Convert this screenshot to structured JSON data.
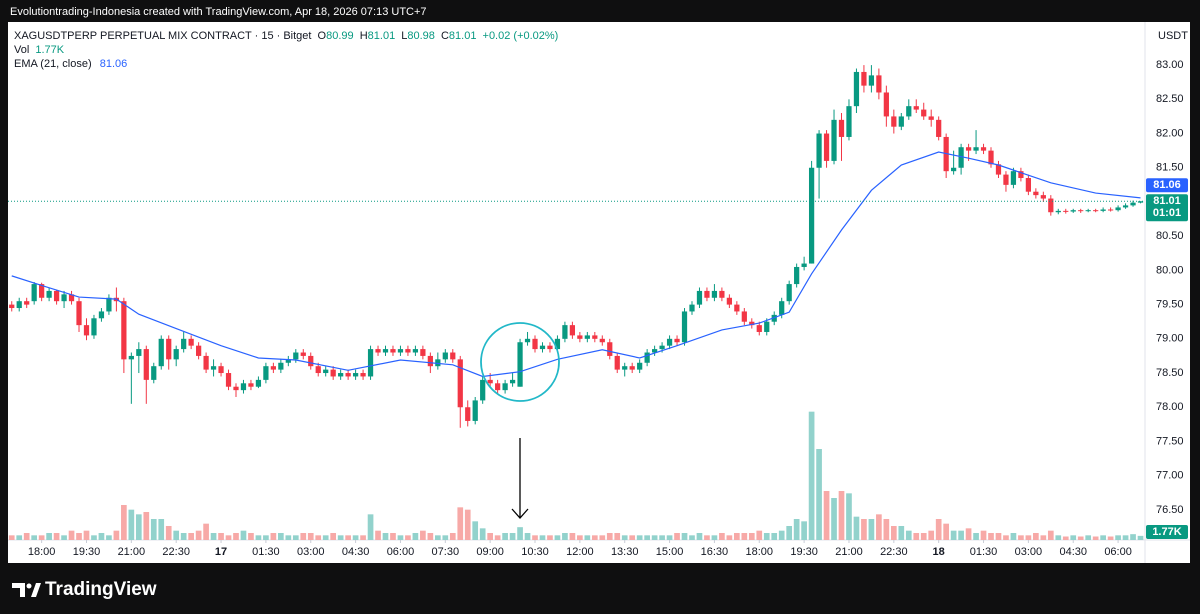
{
  "attribution": "Evolutiontrading-Indonesia created with TradingView.com, Apr 18, 2026 07:13 UTC+7",
  "brand": "TradingView",
  "chart_data": {
    "type": "candlestick",
    "symbol": "XAGUSDTPERP PERPETUAL MIX CONTRACT · 15 · Bitget",
    "ohlc_keys": [
      "O",
      "H",
      "L",
      "C"
    ],
    "change": "+0.02 (+0.02%)",
    "vol_name": "Vol",
    "ema_name": "EMA (21, close)",
    "unit": "USDT",
    "up_color": "#089981",
    "down_color": "#f23645",
    "ema_color": "#2962ff",
    "vol_up_color": "#92d2cc",
    "vol_down_color": "#f7a9a7",
    "grid": false,
    "ylim": [
      76.06,
      83.63
    ],
    "yticks": [
      {
        "value": 76.5,
        "label": "76.50"
      },
      {
        "value": 77,
        "label": "77.00"
      },
      {
        "value": 77.5,
        "label": "77.50"
      },
      {
        "value": 78,
        "label": "78.00"
      },
      {
        "value": 78.5,
        "label": "78.50"
      },
      {
        "value": 79,
        "label": "79.00"
      },
      {
        "value": 79.5,
        "label": "79.50"
      },
      {
        "value": 80,
        "label": "80.00"
      },
      {
        "value": 80.5,
        "label": "80.50"
      },
      {
        "value": 81,
        "label": "81.00"
      },
      {
        "value": 81.5,
        "label": "81.50"
      },
      {
        "value": 82,
        "label": "82.00"
      },
      {
        "value": 82.5,
        "label": "82.50"
      },
      {
        "value": 83,
        "label": "83.00"
      }
    ],
    "xlim": [
      -0.5,
      151.6
    ],
    "xticks": [
      {
        "value": 4,
        "label": "18:00"
      },
      {
        "value": 10,
        "label": "19:30"
      },
      {
        "value": 16,
        "label": "21:00"
      },
      {
        "value": 22,
        "label": "22:30"
      },
      {
        "value": 28,
        "label": "17"
      },
      {
        "value": 34,
        "label": "01:30"
      },
      {
        "value": 40,
        "label": "03:00"
      },
      {
        "value": 46,
        "label": "04:30"
      },
      {
        "value": 52,
        "label": "06:00"
      },
      {
        "value": 58,
        "label": "07:30"
      },
      {
        "value": 64,
        "label": "09:00"
      },
      {
        "value": 70,
        "label": "10:30"
      },
      {
        "value": 76,
        "label": "12:00"
      },
      {
        "value": 82,
        "label": "13:30"
      },
      {
        "value": 88,
        "label": "15:00"
      },
      {
        "value": 94,
        "label": "16:30"
      },
      {
        "value": 100,
        "label": "18:00"
      },
      {
        "value": 106,
        "label": "19:30"
      },
      {
        "value": 112,
        "label": "21:00"
      },
      {
        "value": 118,
        "label": "22:30"
      },
      {
        "value": 124,
        "label": "18"
      },
      {
        "value": 130,
        "label": "01:30"
      },
      {
        "value": 136,
        "label": "03:00"
      },
      {
        "value": 142,
        "label": "04:30"
      },
      {
        "value": 148,
        "label": "06:00"
      }
    ],
    "ohlc": [
      [
        79.5,
        79.55,
        79.4,
        79.45
      ],
      [
        79.45,
        79.6,
        79.4,
        79.55
      ],
      [
        79.55,
        79.6,
        79.45,
        79.5
      ],
      [
        79.55,
        79.83,
        79.5,
        79.8
      ],
      [
        79.8,
        79.82,
        79.55,
        79.6
      ],
      [
        79.6,
        79.75,
        79.55,
        79.7
      ],
      [
        79.7,
        79.72,
        79.5,
        79.55
      ],
      [
        79.55,
        79.7,
        79.45,
        79.65
      ],
      [
        79.65,
        79.7,
        79.5,
        79.55
      ],
      [
        79.55,
        79.6,
        79.1,
        79.2
      ],
      [
        79.2,
        79.3,
        78.98,
        79.05
      ],
      [
        79.05,
        79.35,
        79.0,
        79.3
      ],
      [
        79.3,
        79.45,
        79.25,
        79.4
      ],
      [
        79.4,
        79.65,
        79.35,
        79.6
      ],
      [
        79.6,
        79.75,
        79.4,
        79.55
      ],
      [
        79.55,
        79.6,
        78.5,
        78.7
      ],
      [
        78.7,
        78.8,
        78.05,
        78.75
      ],
      [
        78.75,
        78.95,
        78.5,
        78.85
      ],
      [
        78.85,
        78.9,
        78.05,
        78.4
      ],
      [
        78.4,
        78.65,
        78.35,
        78.6
      ],
      [
        78.6,
        79.05,
        78.55,
        79.0
      ],
      [
        79.0,
        79.05,
        78.55,
        78.7
      ],
      [
        78.7,
        78.9,
        78.6,
        78.85
      ],
      [
        78.85,
        79.1,
        78.8,
        79.0
      ],
      [
        79.0,
        79.05,
        78.85,
        78.9
      ],
      [
        78.9,
        78.95,
        78.7,
        78.75
      ],
      [
        78.75,
        78.8,
        78.5,
        78.55
      ],
      [
        78.55,
        78.7,
        78.45,
        78.6
      ],
      [
        78.6,
        78.65,
        78.45,
        78.5
      ],
      [
        78.5,
        78.55,
        78.25,
        78.3
      ],
      [
        78.3,
        78.35,
        78.15,
        78.25
      ],
      [
        78.25,
        78.4,
        78.2,
        78.35
      ],
      [
        78.35,
        78.4,
        78.25,
        78.3
      ],
      [
        78.3,
        78.45,
        78.28,
        78.4
      ],
      [
        78.4,
        78.65,
        78.35,
        78.6
      ],
      [
        78.6,
        78.65,
        78.5,
        78.55
      ],
      [
        78.55,
        78.7,
        78.5,
        78.65
      ],
      [
        78.65,
        78.75,
        78.6,
        78.7
      ],
      [
        78.7,
        78.85,
        78.65,
        78.8
      ],
      [
        78.8,
        78.85,
        78.7,
        78.75
      ],
      [
        78.75,
        78.8,
        78.55,
        78.6
      ],
      [
        78.6,
        78.65,
        78.45,
        78.5
      ],
      [
        78.5,
        78.6,
        78.45,
        78.55
      ],
      [
        78.55,
        78.6,
        78.4,
        78.45
      ],
      [
        78.45,
        78.55,
        78.4,
        78.5
      ],
      [
        78.5,
        78.55,
        78.4,
        78.45
      ],
      [
        78.45,
        78.55,
        78.4,
        78.5
      ],
      [
        78.5,
        78.55,
        78.4,
        78.45
      ],
      [
        78.45,
        78.9,
        78.4,
        78.85
      ],
      [
        78.85,
        78.9,
        78.75,
        78.8
      ],
      [
        78.8,
        78.9,
        78.75,
        78.85
      ],
      [
        78.85,
        78.9,
        78.75,
        78.8
      ],
      [
        78.8,
        78.9,
        78.75,
        78.85
      ],
      [
        78.85,
        78.9,
        78.75,
        78.8
      ],
      [
        78.8,
        78.9,
        78.75,
        78.85
      ],
      [
        78.85,
        78.9,
        78.7,
        78.75
      ],
      [
        78.75,
        78.8,
        78.5,
        78.6
      ],
      [
        78.6,
        78.8,
        78.55,
        78.7
      ],
      [
        78.7,
        78.85,
        78.65,
        78.8
      ],
      [
        78.8,
        78.85,
        78.65,
        78.7
      ],
      [
        78.7,
        78.75,
        77.7,
        78.0
      ],
      [
        78.0,
        78.1,
        77.72,
        77.8
      ],
      [
        77.8,
        78.15,
        77.75,
        78.1
      ],
      [
        78.1,
        78.45,
        78.05,
        78.4
      ],
      [
        78.4,
        78.5,
        78.3,
        78.35
      ],
      [
        78.35,
        78.4,
        78.2,
        78.25
      ],
      [
        78.25,
        78.4,
        78.2,
        78.35
      ],
      [
        78.35,
        78.5,
        78.3,
        78.4
      ],
      [
        78.3,
        79.0,
        78.3,
        78.95
      ],
      [
        78.95,
        79.1,
        78.9,
        79.0
      ],
      [
        79.0,
        79.05,
        78.8,
        78.85
      ],
      [
        78.85,
        78.95,
        78.8,
        78.9
      ],
      [
        78.9,
        78.95,
        78.8,
        78.85
      ],
      [
        78.85,
        79.05,
        78.8,
        79.0
      ],
      [
        79.0,
        79.25,
        78.95,
        79.2
      ],
      [
        79.2,
        79.25,
        79.0,
        79.05
      ],
      [
        79.05,
        79.1,
        78.95,
        79.0
      ],
      [
        79.0,
        79.1,
        78.95,
        79.05
      ],
      [
        79.05,
        79.1,
        78.95,
        79.0
      ],
      [
        79.0,
        79.05,
        78.9,
        78.95
      ],
      [
        78.95,
        79.0,
        78.7,
        78.75
      ],
      [
        78.75,
        78.8,
        78.5,
        78.55
      ],
      [
        78.55,
        78.65,
        78.45,
        78.6
      ],
      [
        78.6,
        78.65,
        78.5,
        78.55
      ],
      [
        78.55,
        78.7,
        78.5,
        78.65
      ],
      [
        78.65,
        78.85,
        78.6,
        78.8
      ],
      [
        78.8,
        78.9,
        78.75,
        78.85
      ],
      [
        78.85,
        78.95,
        78.8,
        78.9
      ],
      [
        78.9,
        79.05,
        78.85,
        79.0
      ],
      [
        79.0,
        79.05,
        78.9,
        78.95
      ],
      [
        78.95,
        79.45,
        78.9,
        79.4
      ],
      [
        79.4,
        79.55,
        79.35,
        79.5
      ],
      [
        79.5,
        79.75,
        79.45,
        79.7
      ],
      [
        79.7,
        79.75,
        79.55,
        79.6
      ],
      [
        79.6,
        79.8,
        79.55,
        79.7
      ],
      [
        79.7,
        79.75,
        79.55,
        79.6
      ],
      [
        79.6,
        79.65,
        79.45,
        79.5
      ],
      [
        79.5,
        79.55,
        79.35,
        79.4
      ],
      [
        79.4,
        79.45,
        79.2,
        79.25
      ],
      [
        79.25,
        79.3,
        79.15,
        79.2
      ],
      [
        79.2,
        79.25,
        79.05,
        79.1
      ],
      [
        79.1,
        79.3,
        79.05,
        79.25
      ],
      [
        79.25,
        79.4,
        79.2,
        79.35
      ],
      [
        79.35,
        79.6,
        79.3,
        79.55
      ],
      [
        79.55,
        79.85,
        79.5,
        79.8
      ],
      [
        79.8,
        80.1,
        79.75,
        80.05
      ],
      [
        80.05,
        80.2,
        80.0,
        80.1
      ],
      [
        80.1,
        81.6,
        80.1,
        81.5
      ],
      [
        81.5,
        82.05,
        81.05,
        82.0
      ],
      [
        82.0,
        82.05,
        81.5,
        81.6
      ],
      [
        81.6,
        82.35,
        81.55,
        82.2
      ],
      [
        82.2,
        82.3,
        81.6,
        81.95
      ],
      [
        81.95,
        82.5,
        81.9,
        82.4
      ],
      [
        82.4,
        82.95,
        82.3,
        82.9
      ],
      [
        82.9,
        83.0,
        82.6,
        82.7
      ],
      [
        82.7,
        83.0,
        82.6,
        82.85
      ],
      [
        82.85,
        82.95,
        82.5,
        82.6
      ],
      [
        82.6,
        82.7,
        82.1,
        82.25
      ],
      [
        82.25,
        82.35,
        82.0,
        82.1
      ],
      [
        82.1,
        82.3,
        82.05,
        82.25
      ],
      [
        82.25,
        82.5,
        82.2,
        82.4
      ],
      [
        82.4,
        82.5,
        82.3,
        82.35
      ],
      [
        82.35,
        82.45,
        82.2,
        82.25
      ],
      [
        82.25,
        82.35,
        82.1,
        82.2
      ],
      [
        82.2,
        82.25,
        81.9,
        81.95
      ],
      [
        81.95,
        82.0,
        81.35,
        81.45
      ],
      [
        81.45,
        81.75,
        81.4,
        81.5
      ],
      [
        81.5,
        81.85,
        81.4,
        81.8
      ],
      [
        81.8,
        81.85,
        81.6,
        81.75
      ],
      [
        81.75,
        82.05,
        81.7,
        81.8
      ],
      [
        81.8,
        81.85,
        81.7,
        81.75
      ],
      [
        81.75,
        81.8,
        81.5,
        81.55
      ],
      [
        81.55,
        81.6,
        81.35,
        81.4
      ],
      [
        81.4,
        81.45,
        81.15,
        81.25
      ],
      [
        81.25,
        81.5,
        81.2,
        81.45
      ],
      [
        81.45,
        81.5,
        81.3,
        81.35
      ],
      [
        81.35,
        81.4,
        81.1,
        81.15
      ],
      [
        81.15,
        81.2,
        81.05,
        81.1
      ],
      [
        81.1,
        81.15,
        81.0,
        81.05
      ],
      [
        81.05,
        81.1,
        80.8,
        80.85
      ],
      [
        80.85,
        80.9,
        80.82,
        80.87
      ],
      [
        80.87,
        80.9,
        80.83,
        80.86
      ],
      [
        80.86,
        80.9,
        80.84,
        80.88
      ],
      [
        80.88,
        80.9,
        80.84,
        80.87
      ],
      [
        80.87,
        80.9,
        80.85,
        80.88
      ],
      [
        80.88,
        80.9,
        80.85,
        80.87
      ],
      [
        80.87,
        80.92,
        80.85,
        80.89
      ],
      [
        80.89,
        80.92,
        80.86,
        80.88
      ],
      [
        80.88,
        80.95,
        80.86,
        80.92
      ],
      [
        80.92,
        80.98,
        80.9,
        80.95
      ],
      [
        80.95,
        81.02,
        80.93,
        80.99
      ],
      [
        80.99,
        81.01,
        80.98,
        81.01
      ]
    ],
    "volume": [
      2,
      2,
      3,
      2,
      2,
      3,
      3,
      2,
      4,
      3,
      4,
      2,
      3,
      2,
      4,
      15,
      13,
      11,
      12,
      9,
      9,
      6,
      4,
      3,
      3,
      4,
      7,
      3,
      3,
      2,
      3,
      4,
      3,
      2,
      2,
      3,
      3,
      2,
      2,
      3,
      3,
      2,
      2,
      3,
      2,
      2,
      2,
      2,
      11,
      4,
      3,
      3,
      2,
      2,
      3,
      4,
      3,
      2,
      2,
      3,
      14,
      13,
      8,
      5,
      3,
      2,
      3,
      3,
      5.5,
      3,
      2,
      2,
      2,
      2,
      3,
      3,
      2,
      2,
      2,
      2,
      3,
      3,
      2,
      2,
      2,
      2,
      2,
      2,
      2,
      3,
      3,
      2,
      3,
      2,
      2,
      3,
      2,
      3,
      3,
      3,
      4,
      3,
      3,
      4,
      6,
      9,
      8,
      55,
      39,
      21,
      18,
      21,
      20,
      10,
      9,
      9,
      11,
      9,
      6,
      6,
      4,
      3,
      3,
      4,
      9,
      7,
      4,
      4,
      5,
      3,
      4,
      3,
      3,
      2,
      3,
      2,
      2,
      3,
      2,
      4,
      2,
      1.5,
      2,
      1.5,
      2,
      1.5,
      2,
      1.5,
      2,
      2,
      2.5,
      1.77
    ],
    "vol_ylim": [
      0,
      60
    ],
    "vol_label": {
      "value": 1.77,
      "label": "1.77K"
    },
    "ema": {
      "x": [
        0,
        4,
        9,
        14,
        17,
        22,
        28,
        33,
        38,
        45,
        52,
        59,
        63,
        68,
        73,
        79,
        84,
        89,
        95,
        100,
        104,
        107,
        111,
        115,
        119,
        124,
        128,
        132,
        139,
        145,
        151
      ],
      "values": [
        79.92,
        79.78,
        79.61,
        79.58,
        79.36,
        79.15,
        78.9,
        78.72,
        78.69,
        78.54,
        78.69,
        78.62,
        78.45,
        78.52,
        78.7,
        78.84,
        78.72,
        78.9,
        79.13,
        79.23,
        79.39,
        79.95,
        80.59,
        81.17,
        81.54,
        81.73,
        81.64,
        81.54,
        81.28,
        81.13,
        81.06
      ]
    },
    "ema_last": 81.06,
    "last_price": 81.01,
    "countdown": "01:01"
  }
}
